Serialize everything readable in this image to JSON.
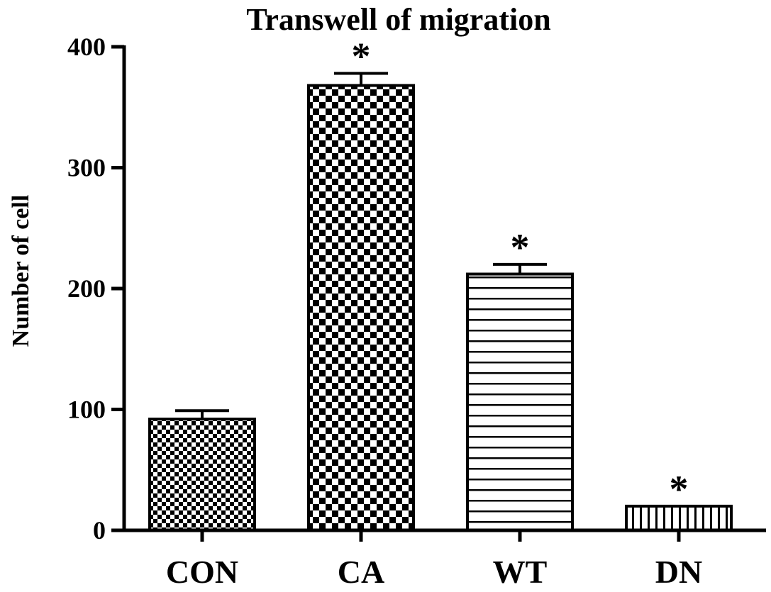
{
  "chart_data": {
    "type": "bar",
    "title": "Transwell of migration",
    "ylabel": "Number of cell",
    "xlabel": "",
    "categories": [
      "CON",
      "CA",
      "WT",
      "DN"
    ],
    "values": [
      92,
      368,
      212,
      20
    ],
    "errors": [
      7,
      10,
      8,
      0
    ],
    "significance": [
      "",
      "*",
      "*",
      "*"
    ],
    "patterns": [
      "fine-check",
      "coarse-check",
      "horizontal-stripes",
      "vertical-stripes"
    ],
    "ylim": [
      0,
      400
    ],
    "yticks": [
      "0",
      "100",
      "200",
      "300",
      "400"
    ],
    "grid": false,
    "legend": "none"
  }
}
